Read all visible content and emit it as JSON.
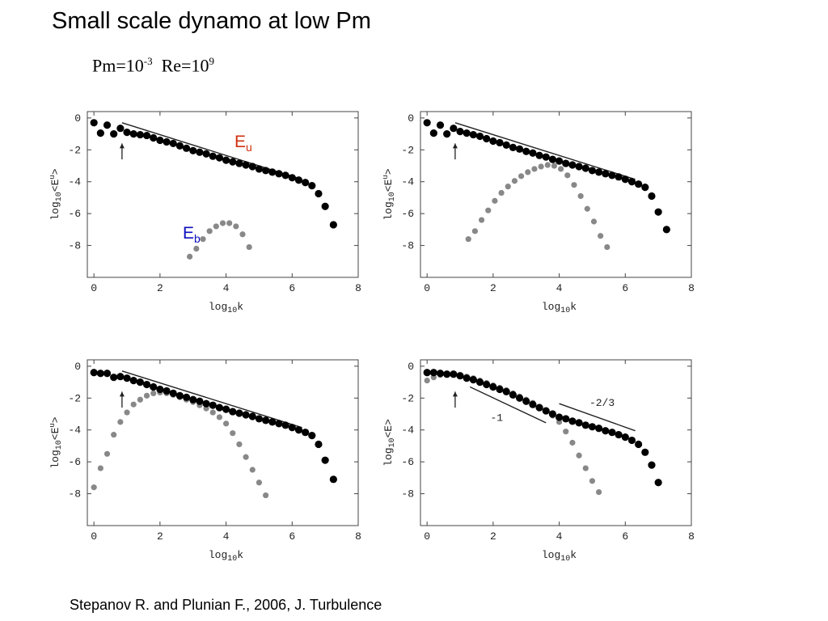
{
  "slide": {
    "title": "Small scale dynamo at low Pm",
    "params": {
      "pm_base": "Pm=10",
      "pm_exp": "-3",
      "re_base": "Re=10",
      "re_exp": "9"
    },
    "citation": "Stepanov R. and Plunian F., 2006, J. Turbulence"
  },
  "labels": {
    "eu_main": "E",
    "eu_sub": "u",
    "eb_main": "E",
    "eb_sub": "b"
  },
  "colors": {
    "eu": "#000000",
    "eb": "#888888",
    "eu_label": "#d03010",
    "eb_label": "#1010c0"
  },
  "chart_data": [
    {
      "type": "scatter",
      "xlabel": "log10k",
      "ylabel": "log10<E^u>",
      "xlim": [
        -0.2,
        8
      ],
      "ylim": [
        -10,
        0.4
      ],
      "xticks": [
        "0",
        "2",
        "4",
        "6",
        "8"
      ],
      "yticks": [
        "0",
        "-2",
        "-4",
        "-6",
        "-8"
      ],
      "series": [
        {
          "name": "Eu",
          "x": [
            0,
            0.2,
            0.4,
            0.6,
            0.8,
            1.0,
            1.2,
            1.4,
            1.6,
            1.8,
            2.0,
            2.2,
            2.4,
            2.6,
            2.8,
            3.0,
            3.2,
            3.4,
            3.6,
            3.8,
            4.0,
            4.2,
            4.4,
            4.6,
            4.8,
            5.0,
            5.2,
            5.4,
            5.6,
            5.8,
            6.0,
            6.2,
            6.4,
            6.6,
            6.8,
            7.0,
            7.25
          ],
          "y": [
            -0.3,
            -0.95,
            -0.45,
            -1.0,
            -0.65,
            -0.9,
            -1.0,
            -1.05,
            -1.1,
            -1.25,
            -1.4,
            -1.5,
            -1.6,
            -1.75,
            -1.9,
            -2.05,
            -2.15,
            -2.25,
            -2.4,
            -2.5,
            -2.65,
            -2.75,
            -2.85,
            -2.95,
            -3.05,
            -3.2,
            -3.3,
            -3.4,
            -3.5,
            -3.6,
            -3.75,
            -3.9,
            -4.05,
            -4.25,
            -4.75,
            -5.55,
            -6.7
          ]
        },
        {
          "name": "Eb",
          "x": [
            2.9,
            3.1,
            3.3,
            3.5,
            3.7,
            3.9,
            4.1,
            4.3,
            4.5,
            4.7
          ],
          "y": [
            -8.7,
            -8.2,
            -7.6,
            -7.1,
            -6.8,
            -6.6,
            -6.6,
            -6.8,
            -7.3,
            -8.1
          ]
        }
      ],
      "reference_lines": [
        {
          "x": [
            0.85,
            6.3
          ],
          "y": [
            -0.3,
            -3.85
          ]
        }
      ],
      "arrow_x": 0.85
    },
    {
      "type": "scatter",
      "xlabel": "log10k",
      "ylabel": "log10<E^u>",
      "xlim": [
        -0.2,
        8
      ],
      "ylim": [
        -10,
        0.4
      ],
      "xticks": [
        "0",
        "2",
        "4",
        "6",
        "8"
      ],
      "yticks": [
        "0",
        "-2",
        "-4",
        "-6",
        "-8"
      ],
      "series": [
        {
          "name": "Eu",
          "x": [
            0,
            0.2,
            0.4,
            0.6,
            0.8,
            1.0,
            1.2,
            1.4,
            1.6,
            1.8,
            2.0,
            2.2,
            2.4,
            2.6,
            2.8,
            3.0,
            3.2,
            3.4,
            3.6,
            3.8,
            4.0,
            4.2,
            4.4,
            4.6,
            4.8,
            5.0,
            5.2,
            5.4,
            5.6,
            5.8,
            6.0,
            6.2,
            6.4,
            6.6,
            6.8,
            7.0,
            7.25
          ],
          "y": [
            -0.3,
            -0.95,
            -0.45,
            -1.0,
            -0.65,
            -0.85,
            -0.95,
            -1.05,
            -1.15,
            -1.3,
            -1.45,
            -1.55,
            -1.7,
            -1.85,
            -1.95,
            -2.1,
            -2.2,
            -2.35,
            -2.45,
            -2.6,
            -2.7,
            -2.85,
            -2.95,
            -3.05,
            -3.15,
            -3.3,
            -3.4,
            -3.5,
            -3.6,
            -3.7,
            -3.85,
            -4.0,
            -4.15,
            -4.35,
            -4.9,
            -5.9,
            -7.0
          ]
        },
        {
          "name": "Eb",
          "x": [
            1.25,
            1.45,
            1.65,
            1.85,
            2.05,
            2.25,
            2.45,
            2.65,
            2.85,
            3.05,
            3.25,
            3.45,
            3.65,
            3.85,
            4.05,
            4.25,
            4.45,
            4.65,
            4.85,
            5.05,
            5.25,
            5.45
          ],
          "y": [
            -7.6,
            -7.1,
            -6.4,
            -5.8,
            -5.2,
            -4.7,
            -4.3,
            -3.95,
            -3.65,
            -3.4,
            -3.2,
            -3.05,
            -2.95,
            -3.0,
            -3.2,
            -3.6,
            -4.2,
            -4.9,
            -5.7,
            -6.5,
            -7.4,
            -8.1
          ]
        }
      ],
      "reference_lines": [
        {
          "x": [
            0.85,
            6.3
          ],
          "y": [
            -0.3,
            -3.85
          ]
        }
      ],
      "arrow_x": 0.85
    },
    {
      "type": "scatter",
      "xlabel": "log10k",
      "ylabel": "log10<E^u>",
      "xlim": [
        -0.2,
        8
      ],
      "ylim": [
        -10,
        0.4
      ],
      "xticks": [
        "0",
        "2",
        "4",
        "6",
        "8"
      ],
      "yticks": [
        "0",
        "-2",
        "-4",
        "-6",
        "-8"
      ],
      "series": [
        {
          "name": "Eu",
          "x": [
            0,
            0.2,
            0.4,
            0.6,
            0.8,
            1.0,
            1.2,
            1.4,
            1.6,
            1.8,
            2.0,
            2.2,
            2.4,
            2.6,
            2.8,
            3.0,
            3.2,
            3.4,
            3.6,
            3.8,
            4.0,
            4.2,
            4.4,
            4.6,
            4.8,
            5.0,
            5.2,
            5.4,
            5.6,
            5.8,
            6.0,
            6.2,
            6.4,
            6.6,
            6.8,
            7.0,
            7.25
          ],
          "y": [
            -0.4,
            -0.45,
            -0.45,
            -0.7,
            -0.65,
            -0.75,
            -0.9,
            -1.0,
            -1.15,
            -1.3,
            -1.45,
            -1.55,
            -1.7,
            -1.85,
            -1.95,
            -2.1,
            -2.2,
            -2.35,
            -2.45,
            -2.6,
            -2.7,
            -2.85,
            -2.95,
            -3.05,
            -3.15,
            -3.3,
            -3.4,
            -3.5,
            -3.6,
            -3.7,
            -3.85,
            -4.0,
            -4.15,
            -4.35,
            -4.9,
            -5.9,
            -7.1
          ]
        },
        {
          "name": "Eb",
          "x": [
            0,
            0.2,
            0.4,
            0.6,
            0.8,
            1.0,
            1.2,
            1.4,
            1.6,
            1.8,
            2.0,
            2.2,
            2.4,
            2.6,
            2.8,
            3.0,
            3.2,
            3.4,
            3.6,
            3.8,
            4.0,
            4.2,
            4.4,
            4.6,
            4.8,
            5.0,
            5.2
          ],
          "y": [
            -7.6,
            -6.4,
            -5.5,
            -4.3,
            -3.5,
            -2.9,
            -2.4,
            -2.1,
            -1.85,
            -1.7,
            -1.65,
            -1.7,
            -1.8,
            -1.95,
            -2.1,
            -2.25,
            -2.45,
            -2.65,
            -2.9,
            -3.2,
            -3.6,
            -4.2,
            -4.9,
            -5.7,
            -6.5,
            -7.3,
            -8.1
          ]
        }
      ],
      "reference_lines": [
        {
          "x": [
            0.85,
            6.3
          ],
          "y": [
            -0.3,
            -3.85
          ]
        }
      ],
      "arrow_x": 0.85
    },
    {
      "type": "scatter",
      "xlabel": "log10k",
      "ylabel": "log10<E>",
      "xlim": [
        -0.2,
        8
      ],
      "ylim": [
        -10,
        0.4
      ],
      "xticks": [
        "0",
        "2",
        "4",
        "6",
        "8"
      ],
      "yticks": [
        "0",
        "-2",
        "-4",
        "-6",
        "-8"
      ],
      "series": [
        {
          "name": "Eu",
          "x": [
            0,
            0.2,
            0.4,
            0.6,
            0.8,
            1.0,
            1.2,
            1.4,
            1.6,
            1.8,
            2.0,
            2.2,
            2.4,
            2.6,
            2.8,
            3.0,
            3.2,
            3.4,
            3.6,
            3.8,
            4.0,
            4.2,
            4.4,
            4.6,
            4.8,
            5.0,
            5.2,
            5.4,
            5.6,
            5.8,
            6.0,
            6.2,
            6.4,
            6.6,
            6.8,
            7.0
          ],
          "y": [
            -0.4,
            -0.4,
            -0.45,
            -0.5,
            -0.5,
            -0.6,
            -0.75,
            -0.85,
            -1.0,
            -1.15,
            -1.3,
            -1.45,
            -1.6,
            -1.8,
            -2.0,
            -2.2,
            -2.4,
            -2.6,
            -2.8,
            -3.0,
            -3.2,
            -3.3,
            -3.45,
            -3.55,
            -3.7,
            -3.8,
            -3.9,
            -4.05,
            -4.15,
            -4.3,
            -4.45,
            -4.65,
            -4.9,
            -5.4,
            -6.2,
            -7.3
          ]
        },
        {
          "name": "Eb",
          "x": [
            0,
            0.2,
            0.4,
            0.6,
            0.8,
            1.0,
            1.2,
            1.4,
            1.6,
            1.8,
            2.0,
            2.2,
            2.4,
            2.6,
            2.8,
            3.0,
            3.2,
            3.4,
            3.6,
            3.8,
            4.0,
            4.2,
            4.4,
            4.6,
            4.8,
            5.0,
            5.2
          ],
          "y": [
            -0.9,
            -0.7,
            -0.55,
            -0.5,
            -0.5,
            -0.55,
            -0.65,
            -0.75,
            -0.9,
            -1.05,
            -1.2,
            -1.35,
            -1.5,
            -1.7,
            -1.9,
            -2.1,
            -2.3,
            -2.55,
            -2.8,
            -3.1,
            -3.5,
            -4.1,
            -4.8,
            -5.6,
            -6.4,
            -7.2,
            -7.9
          ]
        }
      ],
      "reference_lines": [
        {
          "x": [
            1.3,
            3.6
          ],
          "y": [
            -1.3,
            -3.55
          ],
          "label": "-1"
        },
        {
          "x": [
            4.0,
            6.3
          ],
          "y": [
            -2.35,
            -4.05
          ],
          "label": "-2/3"
        }
      ],
      "arrow_x": 0.85
    }
  ]
}
